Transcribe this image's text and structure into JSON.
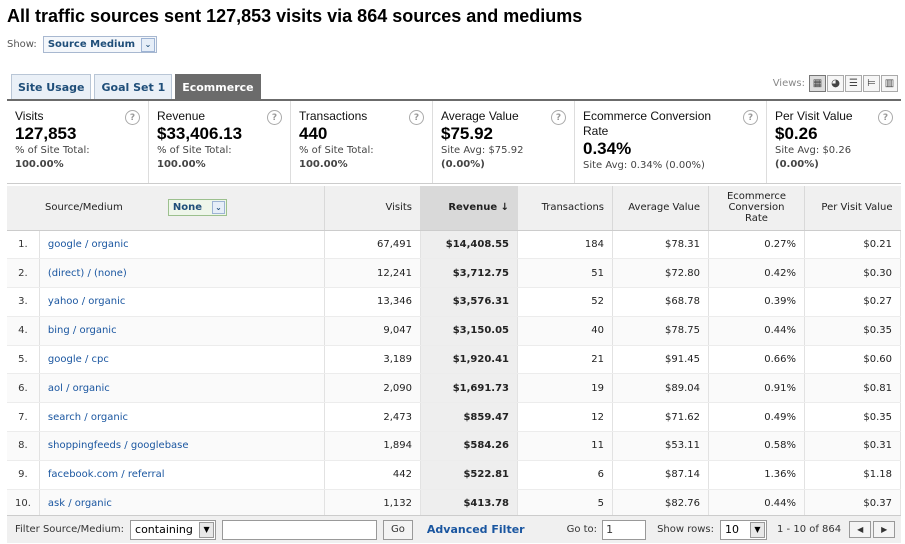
{
  "title": "All traffic sources sent 127,853 visits via 864 sources and mediums",
  "show": {
    "label": "Show:",
    "value": "Source Medium"
  },
  "tabs": [
    {
      "label": "Site Usage"
    },
    {
      "label": "Goal Set 1"
    },
    {
      "label": "Ecommerce"
    }
  ],
  "views_label": "Views:",
  "metrics": [
    {
      "label": "Visits",
      "value": "127,853",
      "sub1": "% of Site Total:",
      "sub2": "100.00%"
    },
    {
      "label": "Revenue",
      "value": "$33,406.13",
      "sub1": "% of Site Total:",
      "sub2": "100.00%"
    },
    {
      "label": "Transactions",
      "value": "440",
      "sub1": "% of Site Total:",
      "sub2": "100.00%"
    },
    {
      "label": "Average Value",
      "value": "$75.92",
      "sub1": "Site Avg: $75.92",
      "sub2": "(0.00%)"
    },
    {
      "label": "Ecommerce Conversion Rate",
      "value": "0.34%",
      "sub1": "Site Avg: 0.34% (0.00%)",
      "sub2": ""
    },
    {
      "label": "Per Visit Value",
      "value": "$0.26",
      "sub1": "Site Avg: $0.26",
      "sub2": "(0.00%)"
    }
  ],
  "table": {
    "headers": {
      "source": "Source/Medium",
      "secondary": "None",
      "visits": "Visits",
      "revenue": "Revenue ↓",
      "transactions": "Transactions",
      "avg_value": "Average Value",
      "conv_rate": "Ecommerce Conversion Rate",
      "per_visit": "Per Visit Value"
    },
    "rows": [
      {
        "idx": "1.",
        "source": "google / organic",
        "visits": "67,491",
        "revenue": "$14,408.55",
        "transactions": "184",
        "avg": "$78.31",
        "conv": "0.27%",
        "pv": "$0.21"
      },
      {
        "idx": "2.",
        "source": "(direct) / (none)",
        "visits": "12,241",
        "revenue": "$3,712.75",
        "transactions": "51",
        "avg": "$72.80",
        "conv": "0.42%",
        "pv": "$0.30"
      },
      {
        "idx": "3.",
        "source": "yahoo / organic",
        "visits": "13,346",
        "revenue": "$3,576.31",
        "transactions": "52",
        "avg": "$68.78",
        "conv": "0.39%",
        "pv": "$0.27"
      },
      {
        "idx": "4.",
        "source": "bing / organic",
        "visits": "9,047",
        "revenue": "$3,150.05",
        "transactions": "40",
        "avg": "$78.75",
        "conv": "0.44%",
        "pv": "$0.35"
      },
      {
        "idx": "5.",
        "source": "google / cpc",
        "visits": "3,189",
        "revenue": "$1,920.41",
        "transactions": "21",
        "avg": "$91.45",
        "conv": "0.66%",
        "pv": "$0.60"
      },
      {
        "idx": "6.",
        "source": "aol / organic",
        "visits": "2,090",
        "revenue": "$1,691.73",
        "transactions": "19",
        "avg": "$89.04",
        "conv": "0.91%",
        "pv": "$0.81"
      },
      {
        "idx": "7.",
        "source": "search / organic",
        "visits": "2,473",
        "revenue": "$859.47",
        "transactions": "12",
        "avg": "$71.62",
        "conv": "0.49%",
        "pv": "$0.35"
      },
      {
        "idx": "8.",
        "source": "shoppingfeeds / googlebase",
        "visits": "1,894",
        "revenue": "$584.26",
        "transactions": "11",
        "avg": "$53.11",
        "conv": "0.58%",
        "pv": "$0.31"
      },
      {
        "idx": "9.",
        "source": "facebook.com / referral",
        "visits": "442",
        "revenue": "$522.81",
        "transactions": "6",
        "avg": "$87.14",
        "conv": "1.36%",
        "pv": "$1.18"
      },
      {
        "idx": "10.",
        "source": "ask / organic",
        "visits": "1,132",
        "revenue": "$413.78",
        "transactions": "5",
        "avg": "$82.76",
        "conv": "0.44%",
        "pv": "$0.37"
      }
    ]
  },
  "footer": {
    "filter_label": "Filter Source/Medium:",
    "filter_mode": "containing",
    "filter_value": "",
    "go": "Go",
    "advanced": "Advanced Filter",
    "goto_label": "Go to:",
    "goto_value": "1",
    "rows_label": "Show rows:",
    "rows_value": "10",
    "range": "1 - 10 of 864"
  }
}
